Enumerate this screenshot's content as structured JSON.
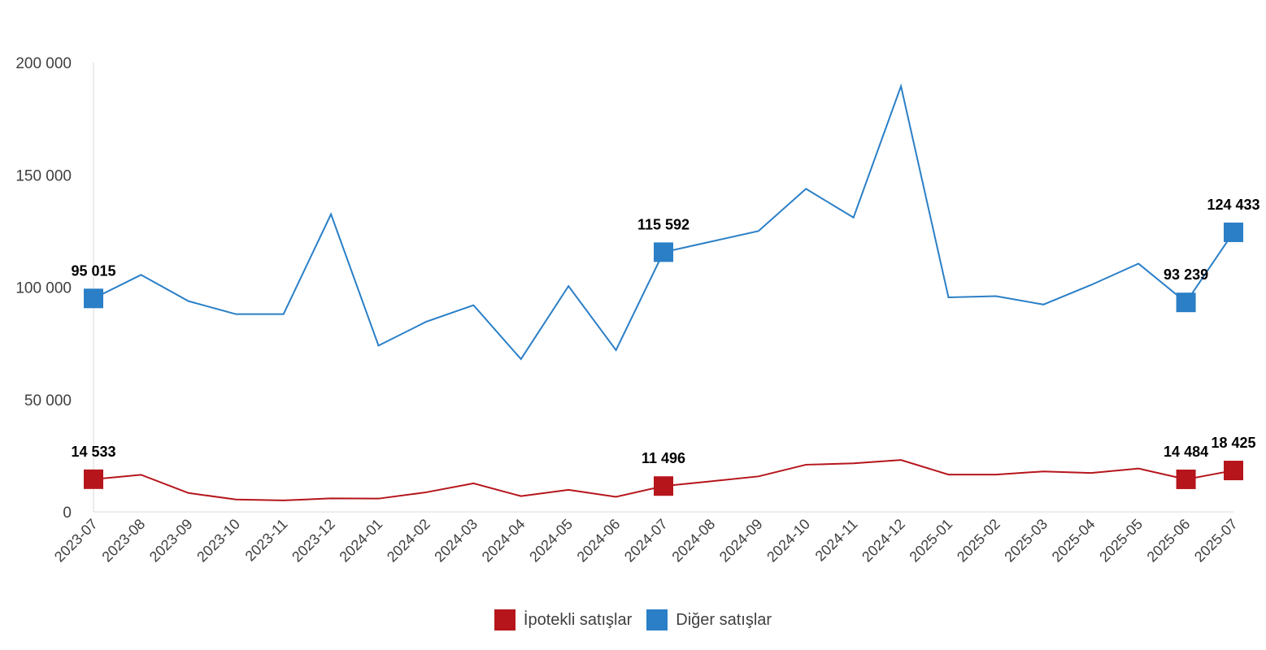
{
  "chart_data": {
    "type": "line",
    "categories": [
      "2023-07",
      "2023-08",
      "2023-09",
      "2023-10",
      "2023-11",
      "2023-12",
      "2024-01",
      "2024-02",
      "2024-03",
      "2024-04",
      "2024-05",
      "2024-06",
      "2024-07",
      "2024-08",
      "2024-09",
      "2024-10",
      "2024-11",
      "2024-12",
      "2025-01",
      "2025-02",
      "2025-03",
      "2025-04",
      "2025-05",
      "2025-06",
      "2025-07"
    ],
    "ylim": [
      0,
      200000
    ],
    "yticks": [
      0,
      50000,
      100000,
      150000,
      200000
    ],
    "ytick_labels": [
      "0",
      "50 000",
      "100 000",
      "150 000",
      "200 000"
    ],
    "grid": false,
    "legend_position": "bottom-center",
    "series": [
      {
        "name": "İpotekli satışlar",
        "color": "#b5151b",
        "values": [
          14533,
          16500,
          8400,
          5500,
          5100,
          6000,
          5900,
          8700,
          12700,
          7000,
          9800,
          6700,
          11496,
          13600,
          15800,
          21000,
          21600,
          23100,
          16600,
          16600,
          18000,
          17300,
          19300,
          14484,
          18425
        ],
        "labels": [
          {
            "index": 0,
            "text": "14 533"
          },
          {
            "index": 12,
            "text": "11 496"
          },
          {
            "index": 23,
            "text": "14 484"
          },
          {
            "index": 24,
            "text": "18 425"
          }
        ]
      },
      {
        "name": "Diğer satışlar",
        "color": "#2a7fc7",
        "values": [
          95015,
          105500,
          93800,
          88000,
          88000,
          132500,
          74000,
          84600,
          92000,
          68000,
          100500,
          72000,
          115592,
          120300,
          125000,
          143800,
          131000,
          189500,
          95500,
          96000,
          92300,
          101000,
          110500,
          93239,
          124433
        ],
        "labels": [
          {
            "index": 0,
            "text": "95 015"
          },
          {
            "index": 12,
            "text": "115 592"
          },
          {
            "index": 23,
            "text": "93 239"
          },
          {
            "index": 24,
            "text": "124 433"
          }
        ]
      }
    ]
  },
  "legend": {
    "items": [
      {
        "label": "İpotekli satışlar",
        "color": "#b5151b"
      },
      {
        "label": "Diğer satışlar",
        "color": "#2a7fc7"
      }
    ]
  }
}
